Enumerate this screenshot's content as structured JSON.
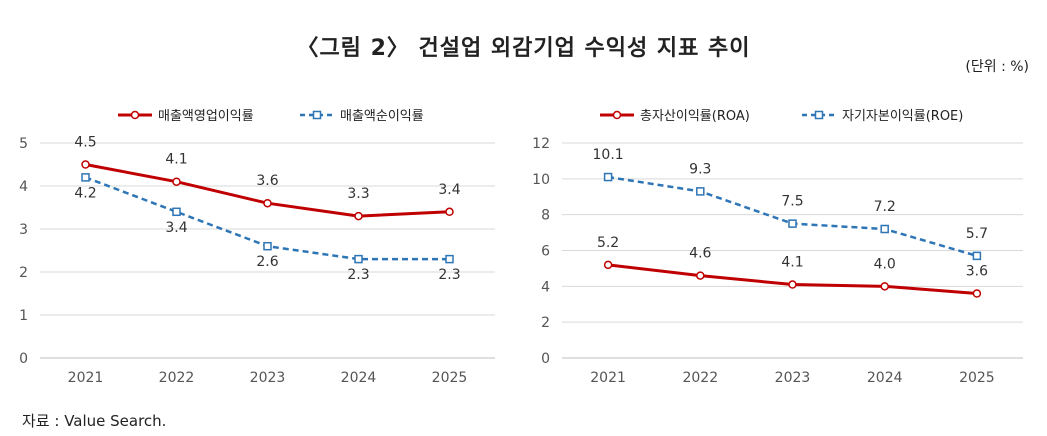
{
  "title": "〈그림 2〉 건설업 외감기업 수익성 지표 추이",
  "unit": "(단위 : %)",
  "source": "자료 : Value Search.",
  "colors": {
    "series_red": "#c00000",
    "series_blue": "#2e75b6",
    "grid": "#d9d9d9"
  },
  "chart_data": [
    {
      "type": "line",
      "title": "",
      "xlabel": "",
      "ylabel": "",
      "categories": [
        "2021",
        "2022",
        "2023",
        "2024",
        "2025"
      ],
      "ylim": [
        0,
        5
      ],
      "yticks": [
        "0",
        "1",
        "2",
        "3",
        "4",
        "5"
      ],
      "legend": "top",
      "grid": "horizontal",
      "series": [
        {
          "name": "매출액영업이익률",
          "values": [
            4.5,
            4.1,
            3.6,
            3.3,
            3.4
          ],
          "labels": [
            "4.5",
            "4.1",
            "3.6",
            "3.3",
            "3.4"
          ],
          "style": "solid"
        },
        {
          "name": "매출액순이익률",
          "values": [
            4.2,
            3.4,
            2.6,
            2.3,
            2.3
          ],
          "labels": [
            "4.2",
            "3.4",
            "2.6",
            "2.3",
            "2.3"
          ],
          "style": "dashed"
        }
      ]
    },
    {
      "type": "line",
      "title": "",
      "xlabel": "",
      "ylabel": "",
      "categories": [
        "2021",
        "2022",
        "2023",
        "2024",
        "2025"
      ],
      "ylim": [
        0,
        12
      ],
      "yticks": [
        "0",
        "2",
        "4",
        "6",
        "8",
        "10",
        "12"
      ],
      "legend": "top",
      "grid": "horizontal",
      "series": [
        {
          "name": "총자산이익률(ROA)",
          "values": [
            5.2,
            4.6,
            4.1,
            4.0,
            3.6
          ],
          "labels": [
            "5.2",
            "4.6",
            "4.1",
            "4.0",
            "3.6"
          ],
          "style": "solid"
        },
        {
          "name": "자기자본이익률(ROE)",
          "values": [
            10.1,
            9.3,
            7.5,
            7.2,
            5.7
          ],
          "labels": [
            "10.1",
            "9.3",
            "7.5",
            "7.2",
            "5.7"
          ],
          "style": "dashed"
        }
      ]
    }
  ]
}
